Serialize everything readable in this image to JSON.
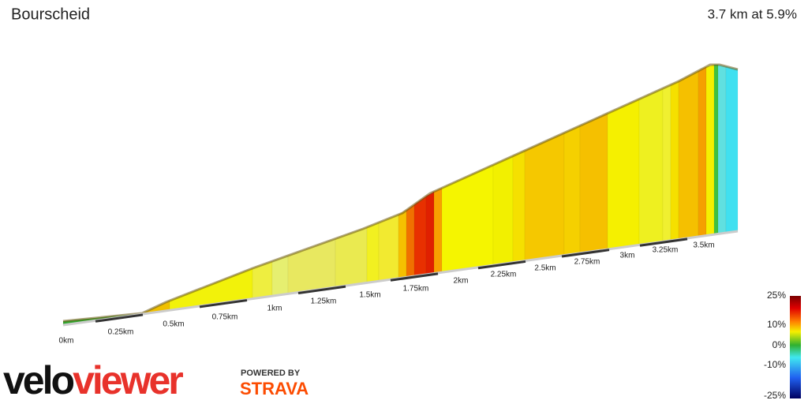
{
  "header": {
    "title": "Bourscheid",
    "summary": "3.7 km at 5.9%"
  },
  "distance_labels": [
    "0km",
    "0.25km",
    "0.5km",
    "0.75km",
    "1km",
    "1.25km",
    "1.5km",
    "1.75km",
    "2km",
    "2.25km",
    "2.5km",
    "2.75km",
    "3km",
    "3.25km",
    "3.5km"
  ],
  "gradient_legend": {
    "labels": [
      "25%",
      "10%",
      "0%",
      "-10%",
      "-25%"
    ]
  },
  "branding": {
    "logo_left": "velo",
    "logo_right": "viewer",
    "powered_by": "POWERED BY",
    "strava": "STRAVA"
  }
}
